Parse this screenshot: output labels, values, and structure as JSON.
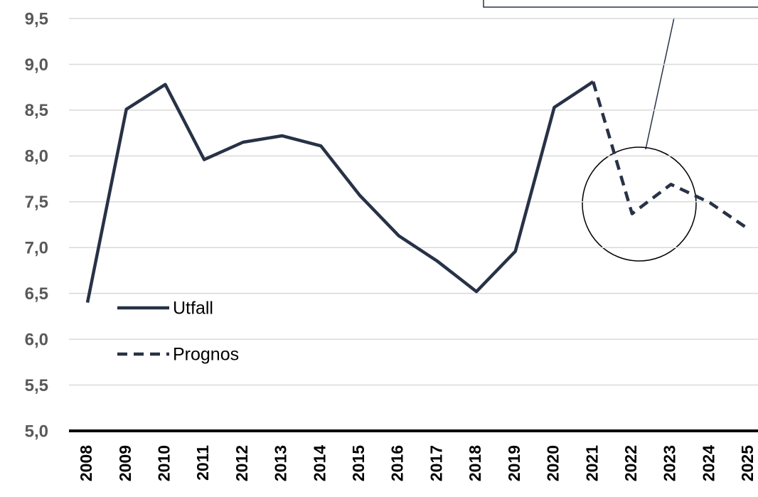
{
  "chart_data": {
    "type": "line",
    "categories": [
      "2008",
      "2009",
      "2010",
      "2011",
      "2012",
      "2013",
      "2014",
      "2015",
      "2016",
      "2017",
      "2018",
      "2019",
      "2020",
      "2021",
      "2022",
      "2023",
      "2024",
      "2025"
    ],
    "series": [
      {
        "name": "Utfall",
        "color": "#283246",
        "dashed": false,
        "values": [
          6.4,
          8.51,
          8.78,
          7.96,
          8.15,
          8.22,
          8.11,
          7.57,
          7.13,
          6.85,
          6.52,
          6.96,
          8.53,
          8.81,
          null,
          null,
          null,
          null
        ]
      },
      {
        "name": "Prognos",
        "color": "#283246",
        "dashed": true,
        "values": [
          null,
          null,
          null,
          null,
          null,
          null,
          null,
          null,
          null,
          null,
          null,
          null,
          null,
          8.81,
          7.37,
          7.69,
          7.49,
          7.2
        ]
      }
    ],
    "ylim": [
      5,
      9.5
    ],
    "yticks": [
      {
        "value": 5,
        "label": "5,0"
      },
      {
        "value": 5.5,
        "label": "5,5"
      },
      {
        "value": 6,
        "label": "6,0"
      },
      {
        "value": 6.5,
        "label": "6,5"
      },
      {
        "value": 7,
        "label": "7,0"
      },
      {
        "value": 7.5,
        "label": "7,5"
      },
      {
        "value": 8,
        "label": "8,0"
      },
      {
        "value": 8.5,
        "label": "8,5"
      },
      {
        "value": 9,
        "label": "9,0"
      },
      {
        "value": 9.5,
        "label": "9,5"
      }
    ],
    "grid": true
  }
}
